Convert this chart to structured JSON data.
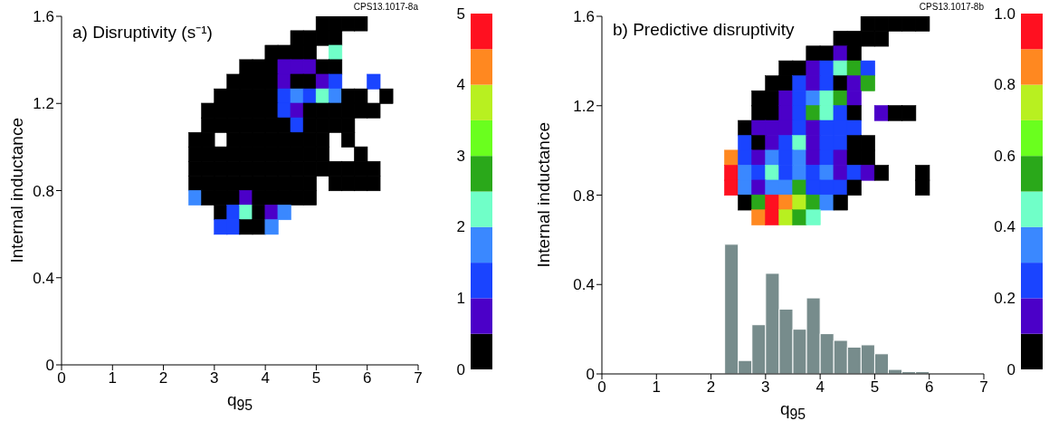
{
  "chart_data": [
    {
      "type": "scatter",
      "marker": "square",
      "title": "a) Disruptivity (s⁻¹)",
      "xlabel": "q$_{95}$",
      "ylabel": "Internal inductance",
      "annotations": [
        "CPS13.1017-8a"
      ],
      "xlim": [
        0,
        7
      ],
      "xticks": [
        0,
        1,
        2,
        3,
        4,
        5,
        6,
        7
      ],
      "ylim": [
        0,
        1.6
      ],
      "yticks": [
        0,
        0.4,
        0.8,
        1.2,
        1.6
      ],
      "clim": [
        0,
        5
      ],
      "cticks": [
        0,
        1,
        2,
        3,
        4,
        5
      ],
      "colors": [
        "#000000",
        "#4b00c8",
        "#1a44ff",
        "#3a88ff",
        "#70ffc8",
        "#2aa81a",
        "#6aff1e",
        "#b8f020",
        "#ff8820",
        "#ff1020"
      ],
      "series": [
        {
          "x": [
            5.125,
            5.375,
            5.625,
            5.875
          ],
          "values": [
            1.567,
            1.567,
            1.567,
            1.567
          ],
          "cvalues": [
            0.25,
            0.25,
            0.25,
            0.25
          ]
        },
        {
          "x": [
            4.625,
            4.875,
            5.125,
            5.375
          ],
          "values": [
            1.5,
            1.5,
            1.5,
            1.5
          ],
          "cvalues": [
            0.25,
            0.25,
            0.25,
            0.25
          ]
        },
        {
          "x": [
            4.125,
            4.375,
            4.625,
            4.875,
            5.375
          ],
          "values": [
            1.433,
            1.433,
            1.433,
            1.433,
            1.433
          ],
          "cvalues": [
            0.25,
            0.25,
            0.25,
            0.25,
            2.25
          ],
          "colors": [
            "#000000",
            "#000000",
            "#000000",
            "#000000",
            "#70ffc8"
          ]
        },
        {
          "x": [
            3.625,
            3.875,
            4.125,
            4.375,
            4.625,
            4.875,
            5.125,
            5.375
          ],
          "values": [
            1.367,
            1.367,
            1.367,
            1.367,
            1.367,
            1.367,
            1.367,
            1.367
          ],
          "cvalues": [
            0.25,
            0.25,
            0.25,
            0.75,
            0.75,
            0.75,
            0.25,
            0.25
          ],
          "colors": [
            "#000000",
            "#000000",
            "#000000",
            "#4b00c8",
            "#4b00c8",
            "#4b00c8",
            "#000000",
            "#000000"
          ]
        },
        {
          "x": [
            3.375,
            3.625,
            3.875,
            4.125,
            4.375,
            4.625,
            4.875,
            5.125,
            5.375,
            6.125
          ],
          "values": [
            1.3,
            1.3,
            1.3,
            1.3,
            1.3,
            1.3,
            1.3,
            1.3,
            1.3,
            1.3
          ],
          "cvalues": [
            0.25,
            0.25,
            0.25,
            0.25,
            0.75,
            0.25,
            0.25,
            0.75,
            1.25,
            1.25
          ],
          "colors": [
            "#000000",
            "#000000",
            "#000000",
            "#000000",
            "#4b00c8",
            "#000000",
            "#000000",
            "#4b00c8",
            "#1a44ff",
            "#1a44ff"
          ]
        },
        {
          "x": [
            3.125,
            3.375,
            3.625,
            3.875,
            4.125,
            4.375,
            4.625,
            4.875,
            5.125,
            5.375,
            5.625,
            5.875,
            6.375
          ],
          "values": [
            1.233,
            1.233,
            1.233,
            1.233,
            1.233,
            1.233,
            1.233,
            1.233,
            1.233,
            1.233,
            1.233,
            1.233,
            1.233
          ],
          "cvalues": [
            0.25,
            0.25,
            0.25,
            0.25,
            0.25,
            1.25,
            1.75,
            1.25,
            2.25,
            1.75,
            0.25,
            0.25,
            0.25
          ],
          "colors": [
            "#000000",
            "#000000",
            "#000000",
            "#000000",
            "#000000",
            "#1a44ff",
            "#3a88ff",
            "#1a44ff",
            "#70ffc8",
            "#3a88ff",
            "#000000",
            "#000000",
            "#000000"
          ]
        },
        {
          "x": [
            2.875,
            3.125,
            3.375,
            3.625,
            3.875,
            4.125,
            4.375,
            4.625,
            4.875,
            5.125,
            5.375,
            5.625,
            5.875,
            6.125
          ],
          "values": [
            1.167,
            1.167,
            1.167,
            1.167,
            1.167,
            1.167,
            1.167,
            1.167,
            1.167,
            1.167,
            1.167,
            1.167,
            1.167,
            1.167
          ],
          "cvalues": [
            0.25,
            0.25,
            0.25,
            0.25,
            0.25,
            0.25,
            1.25,
            0.75,
            0.25,
            0.25,
            0.25,
            0.25,
            0.25,
            0.25
          ],
          "colors": [
            "#000000",
            "#000000",
            "#000000",
            "#000000",
            "#000000",
            "#000000",
            "#1a44ff",
            "#4b00c8",
            "#000000",
            "#000000",
            "#000000",
            "#000000",
            "#000000",
            "#000000"
          ]
        },
        {
          "x": [
            2.875,
            3.125,
            3.375,
            3.625,
            3.875,
            4.125,
            4.375,
            4.625,
            4.875,
            5.125,
            5.375,
            5.625
          ],
          "values": [
            1.1,
            1.1,
            1.1,
            1.1,
            1.1,
            1.1,
            1.1,
            1.1,
            1.1,
            1.1,
            1.1,
            1.1
          ],
          "cvalues": [
            0.25,
            0.25,
            0.25,
            0.25,
            0.25,
            0.25,
            0.25,
            1.25,
            0.25,
            0.25,
            0.25,
            0.25
          ],
          "colors": [
            "#000000",
            "#000000",
            "#000000",
            "#000000",
            "#000000",
            "#000000",
            "#000000",
            "#1a44ff",
            "#000000",
            "#000000",
            "#000000",
            "#000000"
          ]
        },
        {
          "x": [
            2.625,
            2.875,
            3.375,
            3.625,
            3.875,
            4.125,
            4.375,
            4.625,
            4.875,
            5.125,
            5.625
          ],
          "values": [
            1.033,
            1.033,
            1.033,
            1.033,
            1.033,
            1.033,
            1.033,
            1.033,
            1.033,
            1.033,
            1.033
          ],
          "cvalues": [
            0.25,
            0.25,
            0.25,
            0.25,
            0.25,
            0.25,
            0.25,
            0.25,
            0.25,
            0.25,
            0.25
          ]
        },
        {
          "x": [
            2.625,
            2.875,
            3.125,
            3.375,
            3.625,
            3.875,
            4.125,
            4.375,
            4.625,
            4.875,
            5.125,
            5.875
          ],
          "values": [
            0.967,
            0.967,
            0.967,
            0.967,
            0.967,
            0.967,
            0.967,
            0.967,
            0.967,
            0.967,
            0.967,
            0.967
          ],
          "cvalues": [
            0.25,
            0.25,
            0.25,
            0.25,
            0.25,
            0.25,
            0.25,
            0.25,
            0.25,
            0.25,
            0.25,
            0.25
          ]
        },
        {
          "x": [
            2.625,
            2.875,
            3.125,
            3.375,
            3.625,
            3.875,
            4.125,
            4.375,
            4.625,
            4.875,
            5.125,
            5.375,
            5.625,
            5.875,
            6.125
          ],
          "values": [
            0.9,
            0.9,
            0.9,
            0.9,
            0.9,
            0.9,
            0.9,
            0.9,
            0.9,
            0.9,
            0.9,
            0.9,
            0.9,
            0.9,
            0.9
          ],
          "cvalues": [
            0.25,
            0.25,
            0.25,
            0.25,
            0.25,
            0.25,
            0.25,
            0.25,
            0.25,
            0.25,
            0.25,
            0.25,
            0.25,
            0.25,
            0.25
          ]
        },
        {
          "x": [
            2.625,
            2.875,
            3.125,
            3.375,
            3.625,
            3.875,
            4.125,
            4.375,
            4.625,
            4.875,
            5.375,
            5.625,
            5.875,
            6.125
          ],
          "values": [
            0.833,
            0.833,
            0.833,
            0.833,
            0.833,
            0.833,
            0.833,
            0.833,
            0.833,
            0.833,
            0.833,
            0.833,
            0.833,
            0.833
          ],
          "cvalues": [
            0.25,
            0.25,
            0.25,
            0.25,
            0.25,
            0.25,
            0.25,
            0.25,
            0.25,
            0.25,
            0.25,
            0.25,
            0.25,
            0.25
          ]
        },
        {
          "x": [
            2.625,
            2.875,
            3.125,
            3.375,
            3.625,
            3.875,
            4.125,
            4.375,
            4.625,
            4.875
          ],
          "values": [
            0.767,
            0.767,
            0.767,
            0.767,
            0.767,
            0.767,
            0.767,
            0.767,
            0.767,
            0.767
          ],
          "cvalues": [
            1.75,
            0.25,
            0.25,
            0.25,
            0.75,
            0.25,
            0.25,
            0.25,
            0.25,
            0.25
          ],
          "colors": [
            "#3a88ff",
            "#000000",
            "#000000",
            "#000000",
            "#4b00c8",
            "#000000",
            "#000000",
            "#000000",
            "#000000",
            "#000000"
          ]
        },
        {
          "x": [
            3.125,
            3.375,
            3.625,
            3.875,
            4.125,
            4.375
          ],
          "values": [
            0.7,
            0.7,
            0.7,
            0.7,
            0.7,
            0.7
          ],
          "cvalues": [
            0.25,
            1.25,
            2.25,
            0.25,
            0.75,
            1.75
          ],
          "colors": [
            "#000000",
            "#1a44ff",
            "#70ffc8",
            "#000000",
            "#4b00c8",
            "#3a88ff"
          ]
        },
        {
          "x": [
            3.125,
            3.375,
            3.625,
            3.875,
            4.125
          ],
          "values": [
            0.633,
            0.633,
            0.633,
            0.633,
            0.633
          ],
          "cvalues": [
            1.25,
            1.25,
            0.25,
            0.25,
            1.75
          ],
          "colors": [
            "#1a44ff",
            "#1a44ff",
            "#000000",
            "#000000",
            "#3a88ff"
          ]
        }
      ]
    },
    {
      "type": "scatter",
      "marker": "square",
      "title": "b) Predictive disruptivity",
      "xlabel": "q$_{95}$",
      "ylabel": "Internal inductance",
      "annotations": [
        "CPS13.1017-8b"
      ],
      "xlim": [
        0,
        7
      ],
      "xticks": [
        0,
        1,
        2,
        3,
        4,
        5,
        6,
        7
      ],
      "ylim": [
        0,
        1.6
      ],
      "yticks": [
        0,
        0.4,
        0.8,
        1.2,
        1.6
      ],
      "clim": [
        0,
        1
      ],
      "cticks": [
        0,
        0.2,
        0.4,
        0.6,
        0.8,
        {
          "value": 1,
          "label": "1.0"
        }
      ],
      "colors": [
        "#000000",
        "#4b00c8",
        "#1a44ff",
        "#3a88ff",
        "#70ffc8",
        "#2aa81a",
        "#6aff1e",
        "#b8f020",
        "#ff8820",
        "#ff1020"
      ],
      "series": [
        {
          "x": [
            4.875,
            5.125,
            5.375,
            5.625,
            5.875
          ],
          "values": [
            1.567,
            1.567,
            1.567,
            1.567,
            1.567
          ],
          "cvalues": [
            0.05,
            0.05,
            0.05,
            0.05,
            0.05
          ]
        },
        {
          "x": [
            4.375,
            4.625,
            4.875,
            5.125
          ],
          "values": [
            1.5,
            1.5,
            1.5,
            1.5
          ],
          "cvalues": [
            0.05,
            0.05,
            0.05,
            0.05
          ]
        },
        {
          "x": [
            3.875,
            4.125,
            4.375,
            4.625
          ],
          "values": [
            1.433,
            1.433,
            1.433,
            1.433
          ],
          "cvalues": [
            0.05,
            0.05,
            0.15,
            0.05
          ],
          "colors": [
            "#000000",
            "#000000",
            "#4b00c8",
            "#000000"
          ]
        },
        {
          "x": [
            3.375,
            3.625,
            3.875,
            4.125,
            4.375,
            4.625,
            4.875
          ],
          "values": [
            1.367,
            1.367,
            1.367,
            1.367,
            1.367,
            1.367,
            1.367
          ],
          "cvalues": [
            0.05,
            0.05,
            0.15,
            0.25,
            0.45,
            0.55,
            0.25
          ],
          "colors": [
            "#000000",
            "#000000",
            "#4b00c8",
            "#1a44ff",
            "#70ffc8",
            "#2aa81a",
            "#1a44ff"
          ]
        },
        {
          "x": [
            3.125,
            3.375,
            3.625,
            3.875,
            4.125,
            4.375,
            4.625,
            4.875
          ],
          "values": [
            1.3,
            1.3,
            1.3,
            1.3,
            1.3,
            1.3,
            1.3,
            1.3
          ],
          "cvalues": [
            0.05,
            0.05,
            0.25,
            0.15,
            0.25,
            0.05,
            0.15,
            0.55
          ],
          "colors": [
            "#000000",
            "#000000",
            "#1a44ff",
            "#4b00c8",
            "#1a44ff",
            "#000000",
            "#4b00c8",
            "#2aa81a"
          ]
        },
        {
          "x": [
            2.875,
            3.125,
            3.375,
            3.625,
            3.875,
            4.125,
            4.375,
            4.625
          ],
          "values": [
            1.233,
            1.233,
            1.233,
            1.233,
            1.233,
            1.233,
            1.233,
            1.233
          ],
          "cvalues": [
            0.05,
            0.05,
            0.15,
            0.25,
            0.35,
            0.45,
            0.55,
            0.15
          ],
          "colors": [
            "#000000",
            "#000000",
            "#4b00c8",
            "#1a44ff",
            "#3a88ff",
            "#70ffc8",
            "#2aa81a",
            "#4b00c8"
          ]
        },
        {
          "x": [
            2.875,
            3.125,
            3.375,
            3.625,
            3.875,
            4.125,
            4.375,
            4.625,
            5.125,
            5.375,
            5.625
          ],
          "values": [
            1.167,
            1.167,
            1.167,
            1.167,
            1.167,
            1.167,
            1.167,
            1.167,
            1.167,
            1.167,
            1.167
          ],
          "cvalues": [
            0.05,
            0.05,
            0.15,
            0.25,
            0.55,
            0.45,
            0.25,
            0.05,
            0.15,
            0.05,
            0.05
          ],
          "colors": [
            "#000000",
            "#000000",
            "#4b00c8",
            "#1a44ff",
            "#2aa81a",
            "#70ffc8",
            "#1a44ff",
            "#000000",
            "#4b00c8",
            "#000000",
            "#000000"
          ]
        },
        {
          "x": [
            2.625,
            2.875,
            3.125,
            3.375,
            3.625,
            3.875,
            4.125,
            4.375,
            4.625
          ],
          "values": [
            1.1,
            1.1,
            1.1,
            1.1,
            1.1,
            1.1,
            1.1,
            1.1,
            1.1
          ],
          "cvalues": [
            0.05,
            0.15,
            0.15,
            0.15,
            0.25,
            0.15,
            0.25,
            0.25,
            0.25
          ],
          "colors": [
            "#000000",
            "#4b00c8",
            "#4b00c8",
            "#4b00c8",
            "#1a44ff",
            "#4b00c8",
            "#1a44ff",
            "#1a44ff",
            "#1a44ff"
          ]
        },
        {
          "x": [
            2.625,
            2.875,
            3.125,
            3.375,
            3.625,
            3.875,
            4.125,
            4.375,
            4.625,
            4.875
          ],
          "values": [
            1.033,
            1.033,
            1.033,
            1.033,
            1.033,
            1.033,
            1.033,
            1.033,
            1.033,
            1.033
          ],
          "cvalues": [
            0.25,
            0.05,
            0.15,
            0.25,
            0.45,
            0.15,
            0.25,
            0.25,
            0.05,
            0.05
          ],
          "colors": [
            "#1a44ff",
            "#000000",
            "#4b00c8",
            "#1a44ff",
            "#70ffc8",
            "#4b00c8",
            "#1a44ff",
            "#1a44ff",
            "#000000",
            "#000000"
          ]
        },
        {
          "x": [
            2.375,
            2.625,
            2.875,
            3.125,
            3.375,
            3.625,
            3.875,
            4.125,
            4.375,
            4.625,
            4.875
          ],
          "values": [
            0.967,
            0.967,
            0.967,
            0.967,
            0.967,
            0.967,
            0.967,
            0.967,
            0.967,
            0.967,
            0.967
          ],
          "cvalues": [
            0.85,
            0.25,
            0.15,
            0.35,
            0.25,
            0.35,
            0.15,
            0.25,
            0.15,
            0.05,
            0.05
          ],
          "colors": [
            "#ff8820",
            "#1a44ff",
            "#4b00c8",
            "#3a88ff",
            "#1a44ff",
            "#3a88ff",
            "#4b00c8",
            "#1a44ff",
            "#4b00c8",
            "#000000",
            "#000000"
          ]
        },
        {
          "x": [
            2.375,
            2.625,
            2.875,
            3.125,
            3.375,
            3.625,
            3.875,
            4.125,
            4.375,
            4.625,
            4.875,
            5.125,
            5.875
          ],
          "values": [
            0.9,
            0.9,
            0.9,
            0.9,
            0.9,
            0.9,
            0.9,
            0.9,
            0.9,
            0.9,
            0.9,
            0.9,
            0.9
          ],
          "cvalues": [
            0.95,
            0.35,
            0.25,
            0.45,
            0.25,
            0.35,
            0.25,
            0.35,
            0.15,
            0.25,
            0.15,
            0.05,
            0.05
          ],
          "colors": [
            "#ff1020",
            "#3a88ff",
            "#1a44ff",
            "#70ffc8",
            "#1a44ff",
            "#3a88ff",
            "#1a44ff",
            "#3a88ff",
            "#4b00c8",
            "#1a44ff",
            "#4b00c8",
            "#000000",
            "#000000"
          ]
        },
        {
          "x": [
            2.375,
            2.625,
            2.875,
            3.125,
            3.375,
            3.625,
            3.875,
            4.125,
            4.375,
            4.625,
            5.875
          ],
          "values": [
            0.833,
            0.833,
            0.833,
            0.833,
            0.833,
            0.833,
            0.833,
            0.833,
            0.833,
            0.833,
            0.833
          ],
          "cvalues": [
            0.95,
            0.35,
            0.15,
            0.35,
            0.35,
            0.55,
            0.25,
            0.25,
            0.25,
            0.05,
            0.05
          ],
          "colors": [
            "#ff1020",
            "#3a88ff",
            "#4b00c8",
            "#3a88ff",
            "#3a88ff",
            "#2aa81a",
            "#1a44ff",
            "#1a44ff",
            "#1a44ff",
            "#000000",
            "#000000"
          ]
        },
        {
          "x": [
            2.625,
            2.875,
            3.125,
            3.375,
            3.625,
            3.875,
            4.125,
            4.375
          ],
          "values": [
            0.767,
            0.767,
            0.767,
            0.767,
            0.767,
            0.767,
            0.767,
            0.767
          ],
          "cvalues": [
            0.05,
            0.55,
            0.95,
            0.85,
            0.75,
            0.55,
            0.35,
            0.05
          ],
          "colors": [
            "#000000",
            "#2aa81a",
            "#ff1020",
            "#ff8820",
            "#b8f020",
            "#2aa81a",
            "#3a88ff",
            "#000000"
          ]
        },
        {
          "x": [
            2.875,
            3.125,
            3.375,
            3.625,
            3.875
          ],
          "values": [
            0.7,
            0.7,
            0.7,
            0.7,
            0.7
          ],
          "cvalues": [
            0.85,
            0.95,
            0.75,
            0.55,
            0.45
          ],
          "colors": [
            "#ff8820",
            "#ff1020",
            "#b8f020",
            "#2aa81a",
            "#70ffc8"
          ]
        },
        {
          "type": "histogram",
          "bins": [
            2.25,
            2.5,
            2.75,
            3,
            3.25,
            3.5,
            3.75,
            4,
            4.25,
            4.5,
            4.75,
            5,
            5.25,
            5.5,
            5.75,
            6
          ],
          "values": [
            0.58,
            0.06,
            0.22,
            0.45,
            0.29,
            0.2,
            0.34,
            0.18,
            0.15,
            0.12,
            0.13,
            0.09,
            0.02,
            0.01,
            0.01
          ],
          "color": "#778c8c"
        }
      ]
    }
  ]
}
